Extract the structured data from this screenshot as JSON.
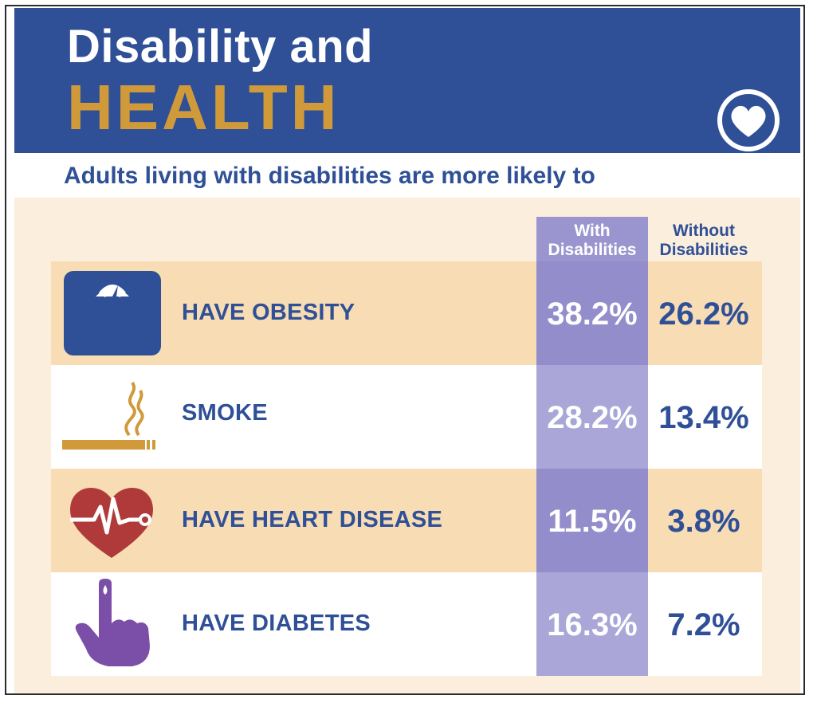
{
  "header": {
    "title_line1": "Disability and",
    "title_line2": "HEALTH",
    "badge_icon": "heart-icon"
  },
  "subtitle": "Adults living with disabilities are more likely to",
  "columns": {
    "with_line1": "With",
    "with_line2": "Disabilities",
    "without_line1": "Without",
    "without_line2": "Disabilities"
  },
  "rows": [
    {
      "icon": "scale-icon",
      "label": "HAVE OBESITY",
      "with": "38.2%",
      "without": "26.2%"
    },
    {
      "icon": "cigarette-icon",
      "label": "SMOKE",
      "with": "28.2%",
      "without": "13.4%"
    },
    {
      "icon": "heartbeat-icon",
      "label": "HAVE HEART DISEASE",
      "with": "11.5%",
      "without": "3.8%"
    },
    {
      "icon": "finger-blood-drop-icon",
      "label": "HAVE DIABETES",
      "with": "16.3%",
      "without": "7.2%"
    }
  ],
  "colors": {
    "brand_blue": "#2f5096",
    "gold": "#d09a3a",
    "heart_red": "#b03a3a",
    "purple": "#7b4fa8",
    "with_column": "#9a95cf"
  }
}
